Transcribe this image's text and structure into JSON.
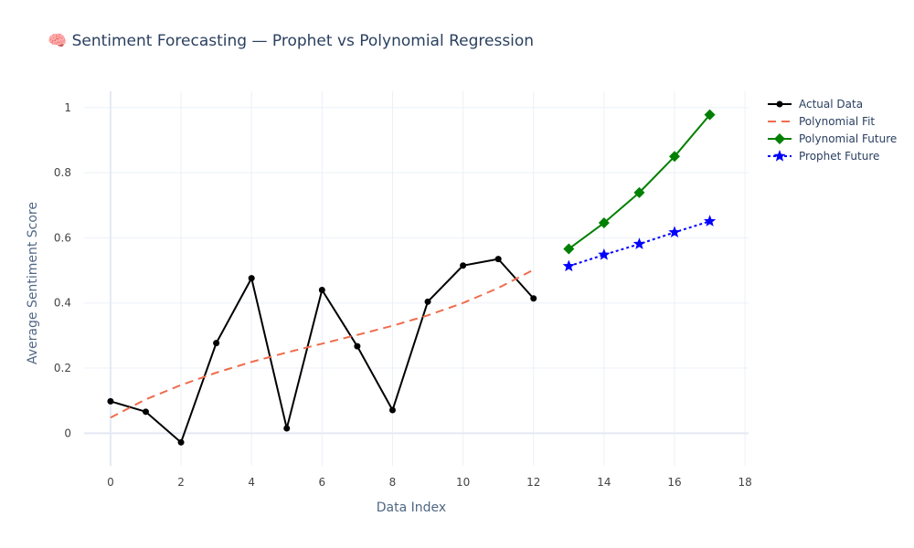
{
  "chart_data": {
    "type": "line",
    "title": "🧠 Sentiment Forecasting — Prophet vs Polynomial Regression",
    "xlabel": "Data Index",
    "ylabel": "Average Sentiment Score",
    "xlim": [
      -0.75,
      18.1
    ],
    "ylim": [
      -0.1,
      1.05
    ],
    "x_ticks": [
      0,
      2,
      4,
      6,
      8,
      10,
      12,
      14,
      16,
      18
    ],
    "y_ticks": [
      0,
      0.2,
      0.4,
      0.6,
      0.8,
      1
    ],
    "grid": true,
    "legend_position": "top-right",
    "series": [
      {
        "name": "Actual Data",
        "color": "#000000",
        "dash": "solid",
        "marker": "circle",
        "x": [
          0,
          1,
          2,
          3,
          4,
          5,
          6,
          7,
          8,
          9,
          10,
          11,
          12
        ],
        "y": [
          0.098,
          0.066,
          -0.028,
          0.277,
          0.476,
          0.015,
          0.44,
          0.267,
          0.071,
          0.404,
          0.515,
          0.535,
          0.414
        ]
      },
      {
        "name": "Polynomial Fit",
        "color": "#ef6c4d",
        "dash": "dash",
        "marker": "none",
        "x": [
          0,
          1,
          2,
          3,
          4,
          5,
          6,
          7,
          8,
          9,
          10,
          11,
          12
        ],
        "y": [
          0.048,
          0.104,
          0.148,
          0.186,
          0.219,
          0.248,
          0.275,
          0.302,
          0.33,
          0.362,
          0.4,
          0.446,
          0.502
        ]
      },
      {
        "name": "Polynomial Future",
        "color": "#008000",
        "dash": "solid",
        "marker": "diamond",
        "x": [
          13,
          14,
          15,
          16,
          17
        ],
        "y": [
          0.566,
          0.646,
          0.739,
          0.85,
          0.978
        ]
      },
      {
        "name": "Prophet Future",
        "color": "#0000ff",
        "dash": "dot",
        "marker": "star",
        "x": [
          13,
          14,
          15,
          16,
          17
        ],
        "y": [
          0.513,
          0.548,
          0.581,
          0.617,
          0.651
        ]
      }
    ]
  }
}
